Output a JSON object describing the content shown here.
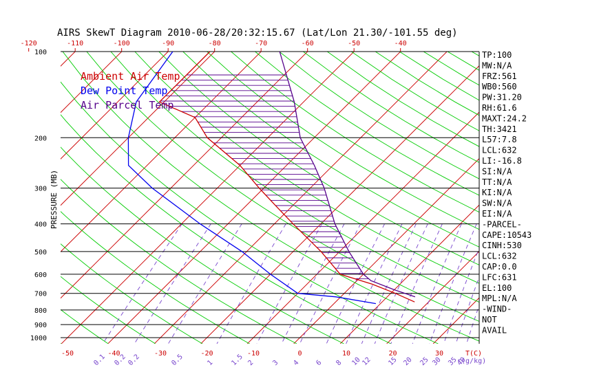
{
  "title": "AIRS SkewT Diagram 2010-06-28/20:32:15.67 (Lat/Lon 21.30/-101.55 deg)",
  "colors": {
    "background": "#ffffff",
    "axis": "#000000",
    "isotherm": "#cc0000",
    "dry_adiabat": "#00cc00",
    "mixing_ratio": "#7744cc",
    "ambient": "#cc0000",
    "dewpoint": "#0000ee",
    "parcel": "#55008b",
    "top_axis_text": "#cc0000",
    "bottom_axis_text": "#cc0000",
    "mixing_text": "#7744cc"
  },
  "chart_data": {
    "type": "line",
    "ylabel": "PRESSURE (MB)",
    "y_scale": "log",
    "ylim": [
      100,
      1050
    ],
    "pressure_ticks": [
      100,
      200,
      300,
      400,
      500,
      600,
      700,
      800,
      900,
      1000
    ],
    "top_temp_ticks": [
      -120,
      -110,
      -100,
      -90,
      -80,
      -70,
      -60,
      -50,
      -40
    ],
    "bottom_temp_ticks": [
      -50,
      -40,
      -30,
      -20,
      -10,
      0,
      10,
      20,
      30
    ],
    "bottom_unit_temp": "T(C)",
    "mixing_ratio_labels": [
      "0.1",
      "0.2",
      "0.2",
      "0.5",
      "1",
      "1.5",
      "2",
      "3",
      "4",
      "6",
      "8",
      "10",
      "12",
      "15",
      "20",
      "25",
      "30",
      "35",
      "40"
    ],
    "mixing_unit": "r(g/kg)",
    "legend": [
      {
        "label": "Ambient Air Temp",
        "color": "#cc0000"
      },
      {
        "label": "Dew Point Temp",
        "color": "#0000ee"
      },
      {
        "label": "Air Parcel Temp",
        "color": "#55008b"
      }
    ],
    "series": [
      {
        "name": "Ambient Air Temp",
        "points": [
          {
            "p": 100,
            "t": -81
          },
          {
            "p": 150,
            "t": -81
          },
          {
            "p": 170,
            "t": -70
          },
          {
            "p": 200,
            "t": -63
          },
          {
            "p": 250,
            "t": -50
          },
          {
            "p": 300,
            "t": -41
          },
          {
            "p": 350,
            "t": -33
          },
          {
            "p": 400,
            "t": -26
          },
          {
            "p": 500,
            "t": -14
          },
          {
            "p": 600,
            "t": -5
          },
          {
            "p": 650,
            "t": 4
          },
          {
            "p": 700,
            "t": 11
          },
          {
            "p": 750,
            "t": 17
          }
        ]
      },
      {
        "name": "Dew Point Temp",
        "points": [
          {
            "p": 100,
            "t": -89
          },
          {
            "p": 150,
            "t": -86
          },
          {
            "p": 200,
            "t": -80
          },
          {
            "p": 250,
            "t": -74
          },
          {
            "p": 300,
            "t": -64
          },
          {
            "p": 400,
            "t": -46
          },
          {
            "p": 500,
            "t": -31
          },
          {
            "p": 600,
            "t": -20
          },
          {
            "p": 700,
            "t": -10
          },
          {
            "p": 720,
            "t": -1
          },
          {
            "p": 760,
            "t": 9
          }
        ]
      },
      {
        "name": "Air Parcel Temp",
        "points": [
          {
            "p": 100,
            "t": -66
          },
          {
            "p": 150,
            "t": -52
          },
          {
            "p": 200,
            "t": -43
          },
          {
            "p": 250,
            "t": -34
          },
          {
            "p": 300,
            "t": -27
          },
          {
            "p": 400,
            "t": -17
          },
          {
            "p": 500,
            "t": -8
          },
          {
            "p": 600,
            "t": 0
          },
          {
            "p": 632,
            "t": 3
          },
          {
            "p": 680,
            "t": 10
          },
          {
            "p": 720,
            "t": 16
          }
        ]
      }
    ]
  },
  "indices": [
    "TP:100",
    "MW:N/A",
    "FRZ:561",
    "WB0:560",
    "PW:31.20",
    "RH:61.6",
    "MAXT:24.2",
    "TH:3421",
    "L57:7.8",
    "LCL:632",
    "LI:-16.8",
    "SI:N/A",
    "TT:N/A",
    "KI:N/A",
    "SW:N/A",
    "EI:N/A",
    "-PARCEL-",
    "CAPE:10543",
    "CINH:530",
    "LCL:632",
    "CAP:0.0",
    "LFC:631",
    "EL:100",
    "MPL:N/A",
    "-WIND-",
    "NOT",
    "AVAIL"
  ]
}
